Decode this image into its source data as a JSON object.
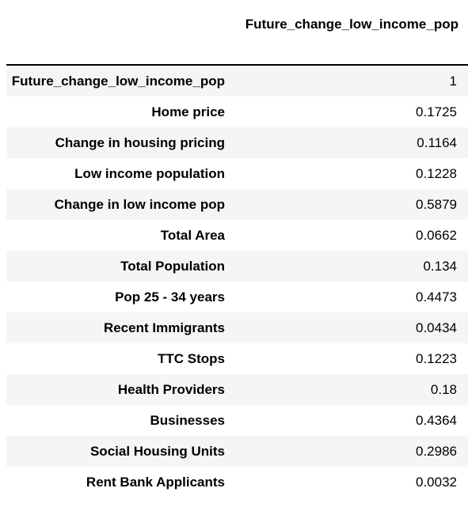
{
  "table": {
    "columns": [
      "",
      "Future_change_low_income_pop"
    ],
    "rows": [
      {
        "label": "Future_change_low_income_pop",
        "value": "1"
      },
      {
        "label": "Home price",
        "value": "0.1725"
      },
      {
        "label": "Change in housing pricing",
        "value": "0.1164"
      },
      {
        "label": "Low income population",
        "value": "0.1228"
      },
      {
        "label": "Change in low income pop",
        "value": "0.5879"
      },
      {
        "label": "Total Area",
        "value": "0.0662"
      },
      {
        "label": "Total Population",
        "value": "0.134"
      },
      {
        "label": "Pop 25 - 34 years",
        "value": "0.4473"
      },
      {
        "label": "Recent Immigrants",
        "value": "0.0434"
      },
      {
        "label": "TTC Stops",
        "value": "0.1223"
      },
      {
        "label": "Health Providers",
        "value": "0.18"
      },
      {
        "label": "Businesses",
        "value": "0.4364"
      },
      {
        "label": "Social Housing Units",
        "value": "0.2986"
      },
      {
        "label": "Rent Bank Applicants",
        "value": "0.0032"
      }
    ]
  }
}
